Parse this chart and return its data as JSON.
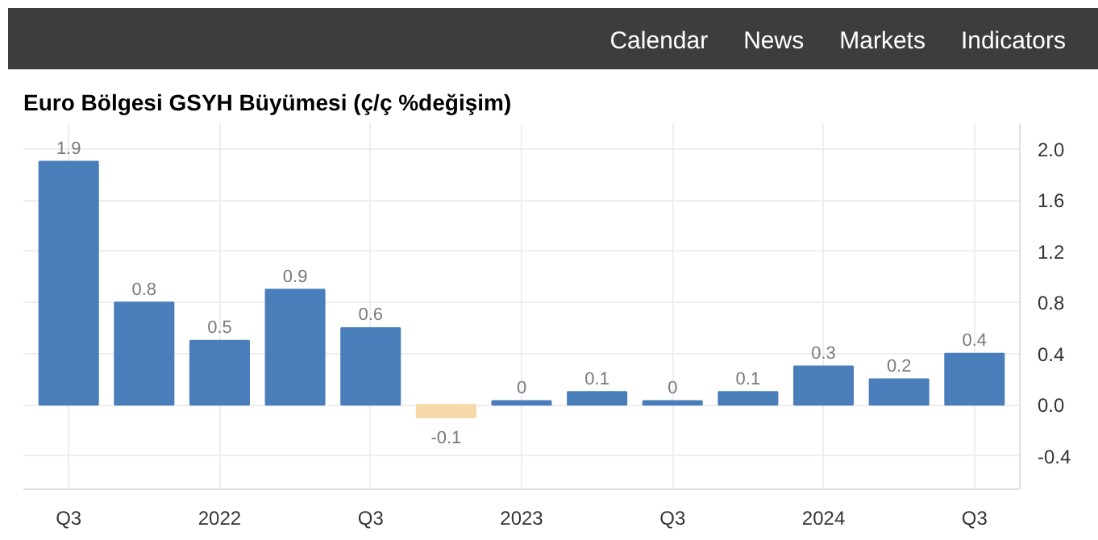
{
  "chart_data": {
    "type": "bar",
    "title": "Euro Bölgesi GSYH Büyümesi (ç/ç %değişim)",
    "annotations": [
      "Calendar",
      "News",
      "Markets",
      "Indicators"
    ],
    "categories": [
      "Q3",
      null,
      "2022",
      null,
      "Q3",
      null,
      "2023",
      null,
      "Q3",
      null,
      "2024",
      null,
      "Q3"
    ],
    "values": [
      1.9,
      0.8,
      0.5,
      0.9,
      0.6,
      -0.1,
      0.03,
      0.1,
      0.03,
      0.1,
      0.3,
      0.2,
      0.4
    ],
    "value_labels": [
      "1.9",
      "0.8",
      "0.5",
      "0.9",
      "0.6",
      "-0.1",
      "0",
      "0.1",
      "0",
      "0.1",
      "0.3",
      "0.2",
      "0.4"
    ],
    "colors": [
      "#4a7ebb",
      "#4a7ebb",
      "#4a7ebb",
      "#4a7ebb",
      "#4a7ebb",
      "#f5d9a8",
      "#4a7ebb",
      "#4a7ebb",
      "#4a7ebb",
      "#4a7ebb",
      "#4a7ebb",
      "#4a7ebb",
      "#4a7ebb"
    ],
    "ylim": [
      -0.66,
      2.2
    ],
    "yticks": [
      {
        "value": -0.4,
        "label": "-0.4"
      },
      {
        "value": 0,
        "label": "0.0"
      },
      {
        "value": 0.4,
        "label": "0.4"
      },
      {
        "value": 0.8,
        "label": "0.8"
      },
      {
        "value": 1.2,
        "label": "1.2"
      },
      {
        "value": 1.6,
        "label": "1.6"
      },
      {
        "value": 2.0,
        "label": "2.0"
      }
    ],
    "grid": true
  }
}
